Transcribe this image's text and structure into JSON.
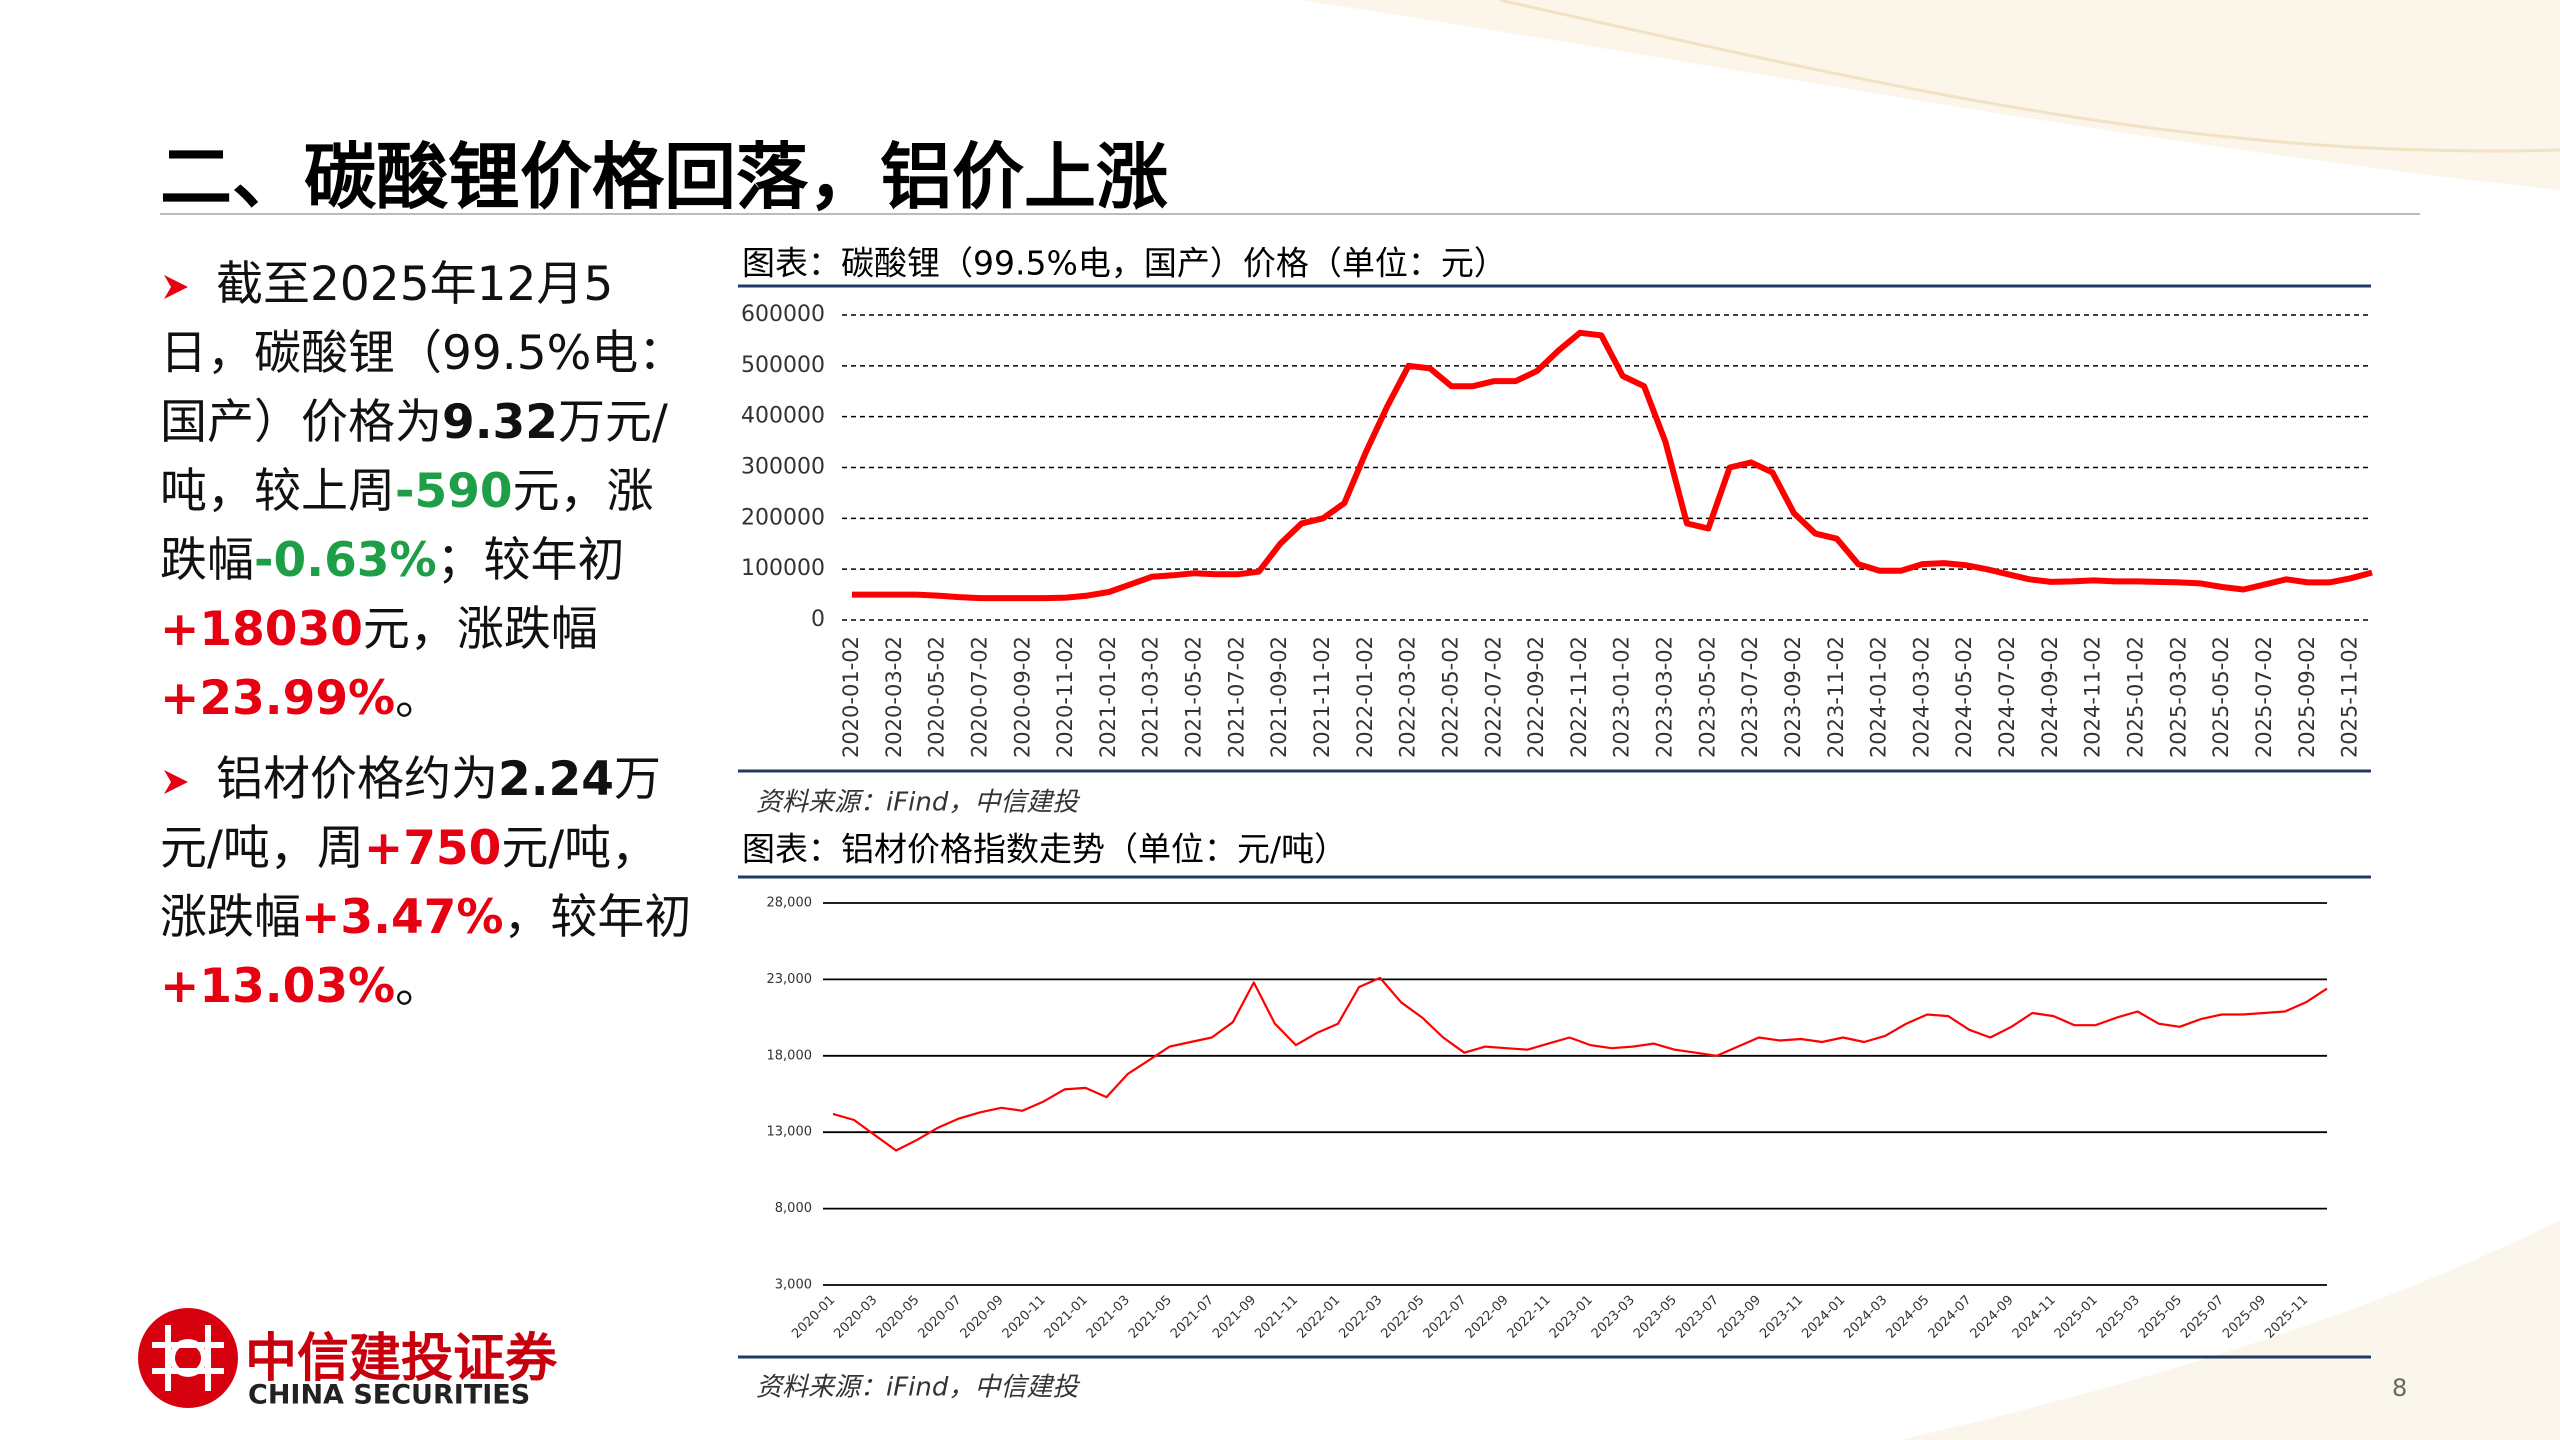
{
  "header": {
    "title": "二、碳酸锂价格回落，铝价上涨"
  },
  "bullets": [
    {
      "runs": [
        {
          "text": "截至2025年12月5日，碳酸锂（99.5%电：国产）价格为"
        },
        {
          "text": "9.32",
          "bold": true
        },
        {
          "text": "万元/吨，较上周"
        },
        {
          "text": "-590",
          "bold": true,
          "color": "#1e9e46"
        },
        {
          "text": "元，涨跌幅"
        },
        {
          "text": "-0.63%",
          "bold": true,
          "color": "#1e9e46"
        },
        {
          "text": "；较年初"
        },
        {
          "text": "+18030",
          "bold": true,
          "color": "#e60012"
        },
        {
          "text": "元，涨跌幅"
        },
        {
          "text": "+23.99%",
          "bold": true,
          "color": "#e60012"
        },
        {
          "text": "。"
        }
      ]
    },
    {
      "runs": [
        {
          "text": "铝材价格约为"
        },
        {
          "text": "2.24",
          "bold": true
        },
        {
          "text": "万元/吨，周"
        },
        {
          "text": "+750",
          "bold": true,
          "color": "#e60012"
        },
        {
          "text": "元/吨，涨跌幅"
        },
        {
          "text": "+3.47%",
          "bold": true,
          "color": "#e60012"
        },
        {
          "text": "，较年初"
        },
        {
          "text": "+13.03%",
          "bold": true,
          "color": "#e60012"
        },
        {
          "text": "。"
        }
      ]
    }
  ],
  "chart_data": [
    {
      "type": "line",
      "title": "图表：碳酸锂（99.5%电，国产）价格（单位：元）",
      "source": "资料来源：iFind，中信建投",
      "color": "#ff0000",
      "grid": true,
      "grid_style": "dashed",
      "x_label_rotation": -90,
      "categories": [
        "2020-01-02",
        null,
        "2020-03-02",
        null,
        "2020-05-02",
        null,
        "2020-07-02",
        null,
        "2020-09-02",
        null,
        "2020-11-02",
        null,
        "2021-01-02",
        null,
        "2021-03-02",
        null,
        "2021-05-02",
        null,
        "2021-07-02",
        null,
        "2021-09-02",
        null,
        "2021-11-02",
        null,
        "2022-01-02",
        null,
        "2022-03-02",
        null,
        "2022-05-02",
        null,
        "2022-07-02",
        null,
        "2022-09-02",
        null,
        "2022-11-02",
        null,
        "2023-01-02",
        null,
        "2023-03-02",
        null,
        "2023-05-02",
        null,
        "2023-07-02",
        null,
        "2023-09-02",
        null,
        "2023-11-02",
        null,
        "2024-01-02",
        null,
        "2024-03-02",
        null,
        "2024-05-02",
        null,
        "2024-07-02",
        null,
        "2024-09-02",
        null,
        "2024-11-02",
        null,
        "2025-01-02",
        null,
        "2025-03-02",
        null,
        "2025-05-02",
        null,
        "2025-07-02",
        null,
        "2025-09-02",
        null,
        "2025-11-02",
        null
      ],
      "values": [
        50000,
        50000,
        50000,
        50000,
        48000,
        45000,
        43000,
        43000,
        43000,
        43000,
        44000,
        48000,
        55000,
        70000,
        85000,
        88000,
        92000,
        90000,
        90000,
        95000,
        150000,
        190000,
        200000,
        230000,
        330000,
        420000,
        500000,
        495000,
        460000,
        460000,
        470000,
        470000,
        490000,
        530000,
        565000,
        560000,
        480000,
        460000,
        350000,
        190000,
        180000,
        300000,
        310000,
        290000,
        210000,
        170000,
        160000,
        110000,
        97000,
        97000,
        110000,
        112000,
        108000,
        100000,
        90000,
        80000,
        75000,
        76000,
        78000,
        76000,
        76000,
        75000,
        74000,
        72000,
        65000,
        60000,
        70000,
        80000,
        74000,
        74000,
        82000,
        93200
      ],
      "ylim": [
        0,
        600000
      ],
      "yticks": [
        0,
        100000,
        200000,
        300000,
        400000,
        500000,
        600000
      ]
    },
    {
      "type": "line",
      "title": "图表：铝材价格指数走势（单位：元/吨）",
      "source": "资料来源：iFind，中信建投",
      "color": "#ff0000",
      "grid": true,
      "grid_style": "solid",
      "x_label_rotation": -45,
      "categories": [
        "2020-01",
        null,
        "2020-03",
        null,
        "2020-05",
        null,
        "2020-07",
        null,
        "2020-09",
        null,
        "2020-11",
        null,
        "2021-01",
        null,
        "2021-03",
        null,
        "2021-05",
        null,
        "2021-07",
        null,
        "2021-09",
        null,
        "2021-11",
        null,
        "2022-01",
        null,
        "2022-03",
        null,
        "2022-05",
        null,
        "2022-07",
        null,
        "2022-09",
        null,
        "2022-11",
        null,
        "2023-01",
        null,
        "2023-03",
        null,
        "2023-05",
        null,
        "2023-07",
        null,
        "2023-09",
        null,
        "2023-11",
        null,
        "2024-01",
        null,
        "2024-03",
        null,
        "2024-05",
        null,
        "2024-07",
        null,
        "2024-09",
        null,
        "2024-11",
        null,
        "2025-01",
        null,
        "2025-03",
        null,
        "2025-05",
        null,
        "2025-07",
        null,
        "2025-09",
        null,
        "2025-11",
        null
      ],
      "values": [
        14200,
        13800,
        12800,
        11800,
        12500,
        13300,
        13900,
        14300,
        14600,
        14400,
        15000,
        15800,
        15900,
        15300,
        16800,
        17700,
        18600,
        18900,
        19200,
        20200,
        22800,
        20100,
        18700,
        19500,
        20100,
        22500,
        23100,
        21500,
        20500,
        19200,
        18200,
        18600,
        18500,
        18400,
        18800,
        19200,
        18700,
        18500,
        18600,
        18800,
        18400,
        18200,
        18000,
        18600,
        19200,
        19000,
        19100,
        18900,
        19200,
        18900,
        19300,
        20100,
        20700,
        20600,
        19700,
        19200,
        19900,
        20800,
        20600,
        20000,
        20000,
        20500,
        20900,
        20100,
        19900,
        20400,
        20700,
        20700,
        20800,
        20900,
        21500,
        22400
      ],
      "ylim": [
        3000,
        28000
      ],
      "yticks": [
        {
          "value": 3000,
          "label": "3,000"
        },
        {
          "value": 8000,
          "label": "8,000"
        },
        {
          "value": 13000,
          "label": "13,000"
        },
        {
          "value": 18000,
          "label": "18,000"
        },
        {
          "value": 23000,
          "label": "23,000"
        },
        {
          "value": 28000,
          "label": "28,000"
        }
      ]
    }
  ],
  "logo": {
    "name": "中信建投证券",
    "name_en": "CHINA SECURITIES"
  },
  "page_number": "8"
}
